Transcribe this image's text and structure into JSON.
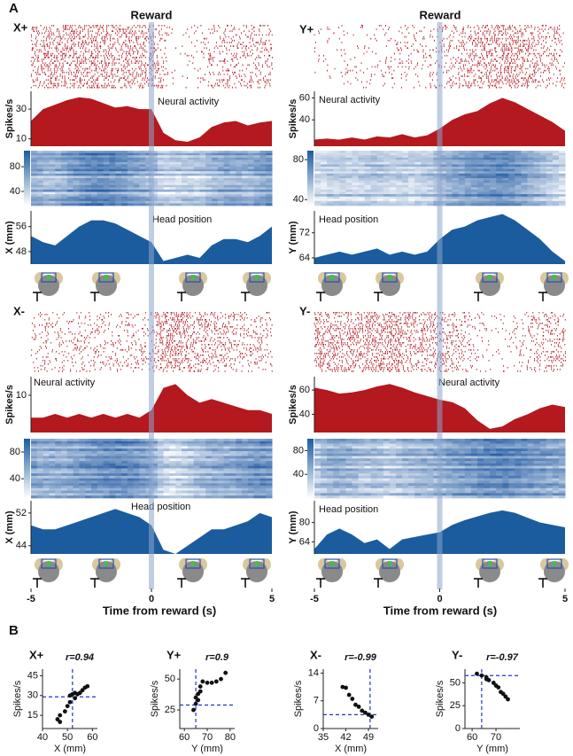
{
  "figure_labels": {
    "a": "A",
    "b": "B"
  },
  "reward_label": "Reward",
  "time_axis": {
    "label": "Time from reward (s)",
    "xlim": [
      -5,
      5
    ],
    "xticks": [
      -5,
      0,
      5
    ],
    "x": [
      -5,
      -4.5,
      -4,
      -3.5,
      -3,
      -2.5,
      -2,
      -1.5,
      -1,
      -0.5,
      0,
      0.5,
      1,
      1.5,
      2,
      2.5,
      3,
      3.5,
      4,
      4.5,
      5
    ]
  },
  "chart_data": [
    {
      "type": "timecourse",
      "title": "X+",
      "neural": {
        "label": "Neural activity",
        "y_label": "Spikes/s",
        "color": "#b3191e",
        "ylim": [
          5,
          42
        ],
        "yticks": [
          10,
          30
        ],
        "values": [
          22,
          30,
          33,
          36,
          38,
          37,
          34,
          31,
          32,
          30,
          30,
          14,
          9,
          8,
          11,
          18,
          21,
          22,
          19,
          21,
          22
        ]
      },
      "heatmap": {
        "ylim": [
          17,
          106
        ],
        "yticks": [
          40,
          80
        ]
      },
      "position": {
        "label": "Head position",
        "y_label": "X (mm)",
        "color": "#1b5c9e",
        "ylim": [
          44,
          61
        ],
        "yticks": [
          48,
          56
        ],
        "values": [
          53,
          51,
          50,
          53,
          56,
          58,
          58,
          57,
          55,
          53,
          51,
          45,
          46,
          47,
          46,
          50,
          52,
          52,
          51,
          53,
          56
        ]
      }
    },
    {
      "type": "timecourse",
      "title": "Y+",
      "neural": {
        "label": "Neural activity",
        "y_label": "Spikes/s",
        "color": "#b3191e",
        "ylim": [
          16,
          66
        ],
        "yticks": [
          40,
          60
        ],
        "values": [
          22,
          23,
          22,
          24,
          22,
          25,
          24,
          27,
          24,
          26,
          32,
          40,
          45,
          48,
          55,
          60,
          56,
          50,
          44,
          38,
          30
        ]
      },
      "heatmap": {
        "ylim": [
          34,
          89
        ],
        "yticks": [
          40,
          80
        ]
      },
      "position": {
        "label": "Head position",
        "y_label": "Y (mm)",
        "color": "#1b5c9e",
        "ylim": [
          62,
          79
        ],
        "yticks": [
          64,
          72
        ],
        "values": [
          64,
          65,
          66,
          65,
          66,
          67,
          65,
          66,
          65,
          66,
          70,
          73,
          74,
          76,
          77,
          78,
          76,
          73,
          70,
          66,
          63
        ]
      }
    },
    {
      "type": "timecourse",
      "title": "X-",
      "neural": {
        "label": "Neural activity",
        "y_label": "Spikes/s",
        "color": "#b3191e",
        "ylim": [
          0,
          15
        ],
        "yticks": [
          10
        ],
        "values": [
          4,
          4,
          5,
          4,
          5,
          4,
          5,
          4,
          5,
          4,
          6,
          12,
          13,
          10,
          8,
          9,
          8,
          7,
          6,
          6,
          5
        ]
      },
      "heatmap": {
        "ylim": [
          11,
          100
        ],
        "yticks": [
          40,
          80
        ]
      },
      "position": {
        "label": "Head position",
        "y_label": "X (mm)",
        "color": "#1b5c9e",
        "ylim": [
          42,
          55
        ],
        "yticks": [
          44,
          52
        ],
        "values": [
          49,
          48,
          48,
          49,
          50,
          51,
          52,
          53,
          52,
          51,
          49,
          43,
          42,
          44,
          46,
          48,
          48,
          49,
          50,
          52,
          51
        ]
      }
    },
    {
      "type": "timecourse",
      "title": "Y-",
      "neural": {
        "label": "Neural activity",
        "y_label": "Spikes/s",
        "color": "#b3191e",
        "ylim": [
          25,
          71
        ],
        "yticks": [
          40,
          60
        ],
        "values": [
          62,
          60,
          57,
          58,
          60,
          63,
          65,
          62,
          58,
          55,
          52,
          50,
          45,
          35,
          28,
          30,
          36,
          40,
          45,
          48,
          46
        ]
      },
      "heatmap": {
        "ylim": [
          0,
          100
        ],
        "yticks": [
          40,
          80
        ]
      },
      "position": {
        "label": "Head position",
        "y_label": "Y (mm)",
        "color": "#1b5c9e",
        "ylim": [
          54,
          98
        ],
        "yticks": [
          64,
          80
        ],
        "values": [
          58,
          70,
          75,
          70,
          63,
          66,
          58,
          66,
          68,
          70,
          72,
          78,
          82,
          85,
          88,
          90,
          88,
          84,
          80,
          78,
          76
        ]
      }
    },
    {
      "type": "scatter",
      "title": "X+",
      "annotation": "r=0.94",
      "x_label": "X (mm)",
      "y_label": "Spikes/s",
      "xlim": [
        40,
        62
      ],
      "xticks": [
        40,
        50,
        60
      ],
      "ylim": [
        5,
        50
      ],
      "yticks": [
        15,
        30,
        45
      ],
      "x": [
        46,
        47,
        47,
        49,
        50,
        51,
        52,
        53,
        53,
        54,
        55,
        56,
        57,
        58,
        51
      ],
      "y": [
        12,
        15,
        10,
        18,
        22,
        25,
        31,
        32,
        28,
        31,
        32,
        34,
        36,
        37,
        30
      ],
      "reference": {
        "x": 52,
        "y": 29
      }
    },
    {
      "type": "scatter",
      "title": "Y+",
      "annotation": "r=0.9",
      "x_label": "Y (mm)",
      "y_label": "Spikes/s",
      "xlim": [
        58,
        82
      ],
      "xticks": [
        60,
        70,
        80
      ],
      "ylim": [
        10,
        58
      ],
      "yticks": [
        25,
        50
      ],
      "x": [
        64,
        65,
        66,
        66,
        67,
        68,
        70,
        72,
        74,
        76,
        78,
        67,
        65
      ],
      "y": [
        25,
        30,
        33,
        38,
        44,
        48,
        47,
        47,
        48,
        50,
        55,
        40,
        35
      ],
      "reference": {
        "x": 65,
        "y": 29
      }
    },
    {
      "type": "scatter",
      "title": "X-",
      "annotation": "r=-0.99",
      "x_label": "X (mm)",
      "y_label": "Spikes/s",
      "xlim": [
        35,
        52
      ],
      "xticks": [
        35,
        42,
        49
      ],
      "ylim": [
        0,
        15
      ],
      "yticks": [
        0,
        7,
        14
      ],
      "x": [
        41,
        42,
        43,
        44,
        45,
        46,
        47,
        48,
        49,
        50
      ],
      "y": [
        10.5,
        10.3,
        8.5,
        7.5,
        6,
        5.5,
        4.5,
        4,
        3.5,
        3
      ],
      "reference": {
        "x": 49.5,
        "y": 3.5
      }
    },
    {
      "type": "scatter",
      "title": "Y-",
      "annotation": "r=-0.97",
      "x_label": "Y (mm)",
      "y_label": "Spikes/s",
      "xlim": [
        57,
        80
      ],
      "xticks": [
        60,
        70
      ],
      "ylim": [
        0,
        65
      ],
      "yticks": [
        0,
        25,
        50
      ],
      "x": [
        62,
        64,
        66,
        67,
        69,
        70,
        71,
        72,
        73,
        74,
        75,
        66
      ],
      "y": [
        60,
        58,
        56,
        53,
        50,
        47,
        45,
        40,
        38,
        35,
        32,
        54
      ],
      "reference": {
        "x": 64,
        "y": 58
      }
    }
  ]
}
